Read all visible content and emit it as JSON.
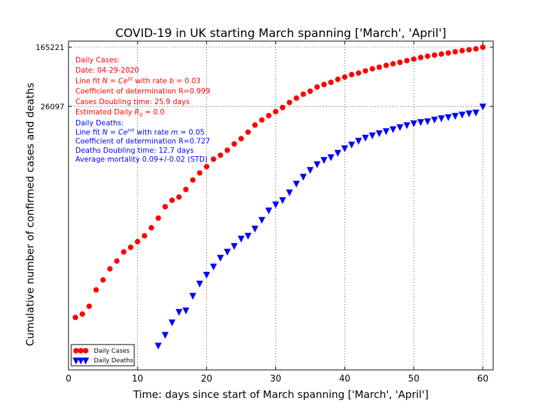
{
  "chart_data": {
    "type": "scatter",
    "title": "COVID-19 in UK starting March spanning ['March', 'April']",
    "xlabel": "Time: days since start of March spanning ['March', 'April']",
    "ylabel": "Cumulative number of confirmed cases and deaths",
    "xlim": [
      0,
      61.5
    ],
    "ylim": [
      7,
      200000
    ],
    "yscale": "log",
    "grid": true,
    "xticks": [
      0,
      10,
      20,
      30,
      40,
      50,
      60
    ],
    "yticks": [
      {
        "value": 165221,
        "label": "165221"
      },
      {
        "value": 26097,
        "label": "26097"
      }
    ],
    "legend_position": "lower-left",
    "series": [
      {
        "name": "Daily Cases",
        "color": "#ff0000",
        "marker": "circle",
        "x": [
          1,
          2,
          3,
          4,
          5,
          6,
          7,
          8,
          9,
          10,
          11,
          12,
          13,
          14,
          15,
          16,
          17,
          18,
          19,
          20,
          21,
          22,
          23,
          24,
          25,
          26,
          27,
          28,
          29,
          30,
          31,
          32,
          33,
          34,
          35,
          36,
          37,
          38,
          39,
          40,
          41,
          42,
          43,
          44,
          45,
          46,
          47,
          48,
          49,
          50,
          51,
          52,
          53,
          54,
          55,
          56,
          57,
          58,
          59,
          60
        ],
        "y": [
          36,
          40,
          51,
          85,
          116,
          164,
          209,
          278,
          321,
          383,
          460,
          590,
          798,
          1140,
          1391,
          1543,
          1950,
          2626,
          3269,
          3983,
          5018,
          5683,
          6650,
          8077,
          9529,
          11658,
          14543,
          17089,
          19522,
          22141,
          25150,
          29474,
          33718,
          38168,
          41903,
          47806,
          51608,
          55242,
          60733,
          65077,
          70272,
          73758,
          78991,
          84279,
          88621,
          93873,
          98476,
          103093,
          108692,
          114217,
          120067,
          124743,
          129044,
          133495,
          138078,
          143464,
          148377,
          152840,
          157149,
          165221
        ]
      },
      {
        "name": "Daily Deaths",
        "color": "#0000ff",
        "marker": "triangle-down",
        "x": [
          13,
          14,
          15,
          16,
          17,
          18,
          19,
          20,
          21,
          22,
          23,
          24,
          25,
          26,
          27,
          28,
          29,
          30,
          31,
          32,
          33,
          34,
          35,
          36,
          37,
          38,
          39,
          40,
          41,
          42,
          43,
          44,
          45,
          46,
          47,
          48,
          49,
          50,
          51,
          52,
          53,
          54,
          55,
          56,
          57,
          58,
          59,
          60
        ],
        "y": [
          15,
          21,
          31,
          43,
          45,
          71,
          104,
          137,
          177,
          233,
          281,
          336,
          423,
          463,
          578,
          759,
          1019,
          1228,
          1408,
          1789,
          2352,
          2921,
          3605,
          4313,
          4934,
          5373,
          6159,
          7097,
          7978,
          8958,
          9875,
          10612,
          11329,
          12107,
          12868,
          13729,
          14576,
          15464,
          16060,
          16509,
          17337,
          18100,
          18738,
          19506,
          20319,
          21092,
          21678,
          26097
        ]
      }
    ],
    "annotations": {
      "cases": {
        "color": "#ff0000",
        "lines": [
          "Daily Cases:",
          "Date: 04-29-2020",
          "Line fit N = Ce^{bt} with rate b = 0.03",
          "Coefficient of determination R=0.999",
          "Cases Doubling time: 25.9 days",
          "Estimated Daily R_0 = 0.0"
        ]
      },
      "deaths": {
        "color": "#0000ff",
        "lines": [
          "Daily Deaths:",
          "Line fit N = Ce^{mt} with rate m = 0.05",
          "Coefficient of determination R=0.727",
          "Deaths Doubling time: 12.7 days",
          "Average mortality 0.09+/-0.02 (STD)"
        ]
      }
    }
  }
}
